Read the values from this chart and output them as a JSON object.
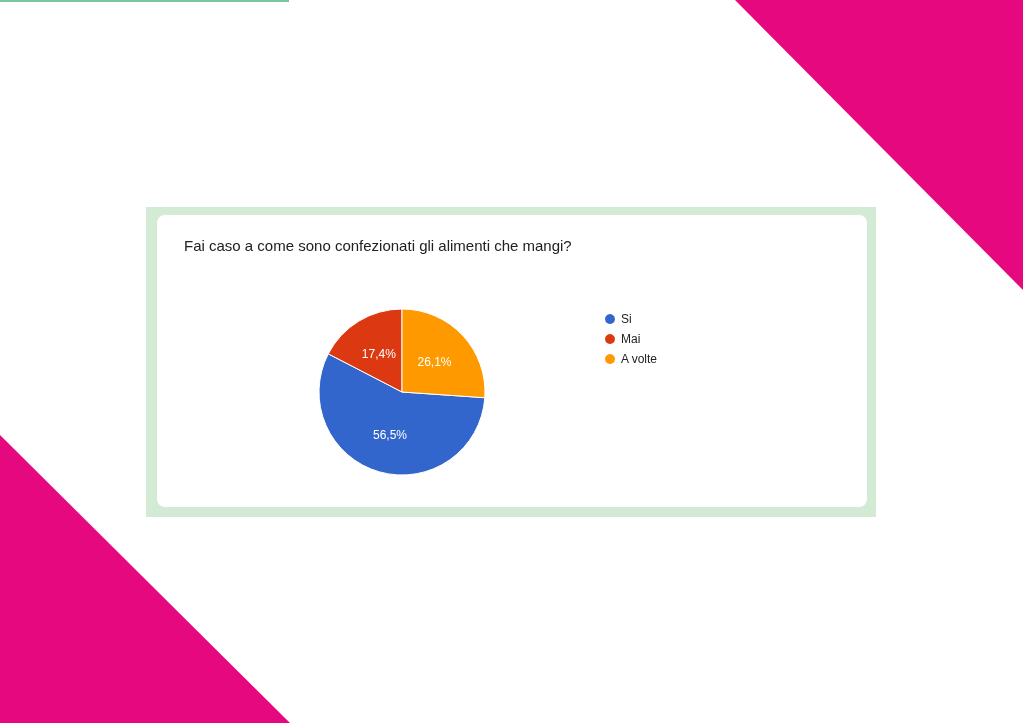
{
  "chart_data": {
    "type": "pie",
    "title": "Fai caso a come sono confezionati gli alimenti che mangi?",
    "categories": [
      "Si",
      "Mai",
      "A volte"
    ],
    "values": [
      56.5,
      17.4,
      26.1
    ],
    "colors": [
      "#3366cc",
      "#dc3912",
      "#ff9900"
    ],
    "value_labels": [
      "56,5%",
      "17,4%",
      "26,1%"
    ],
    "legend": "right"
  }
}
